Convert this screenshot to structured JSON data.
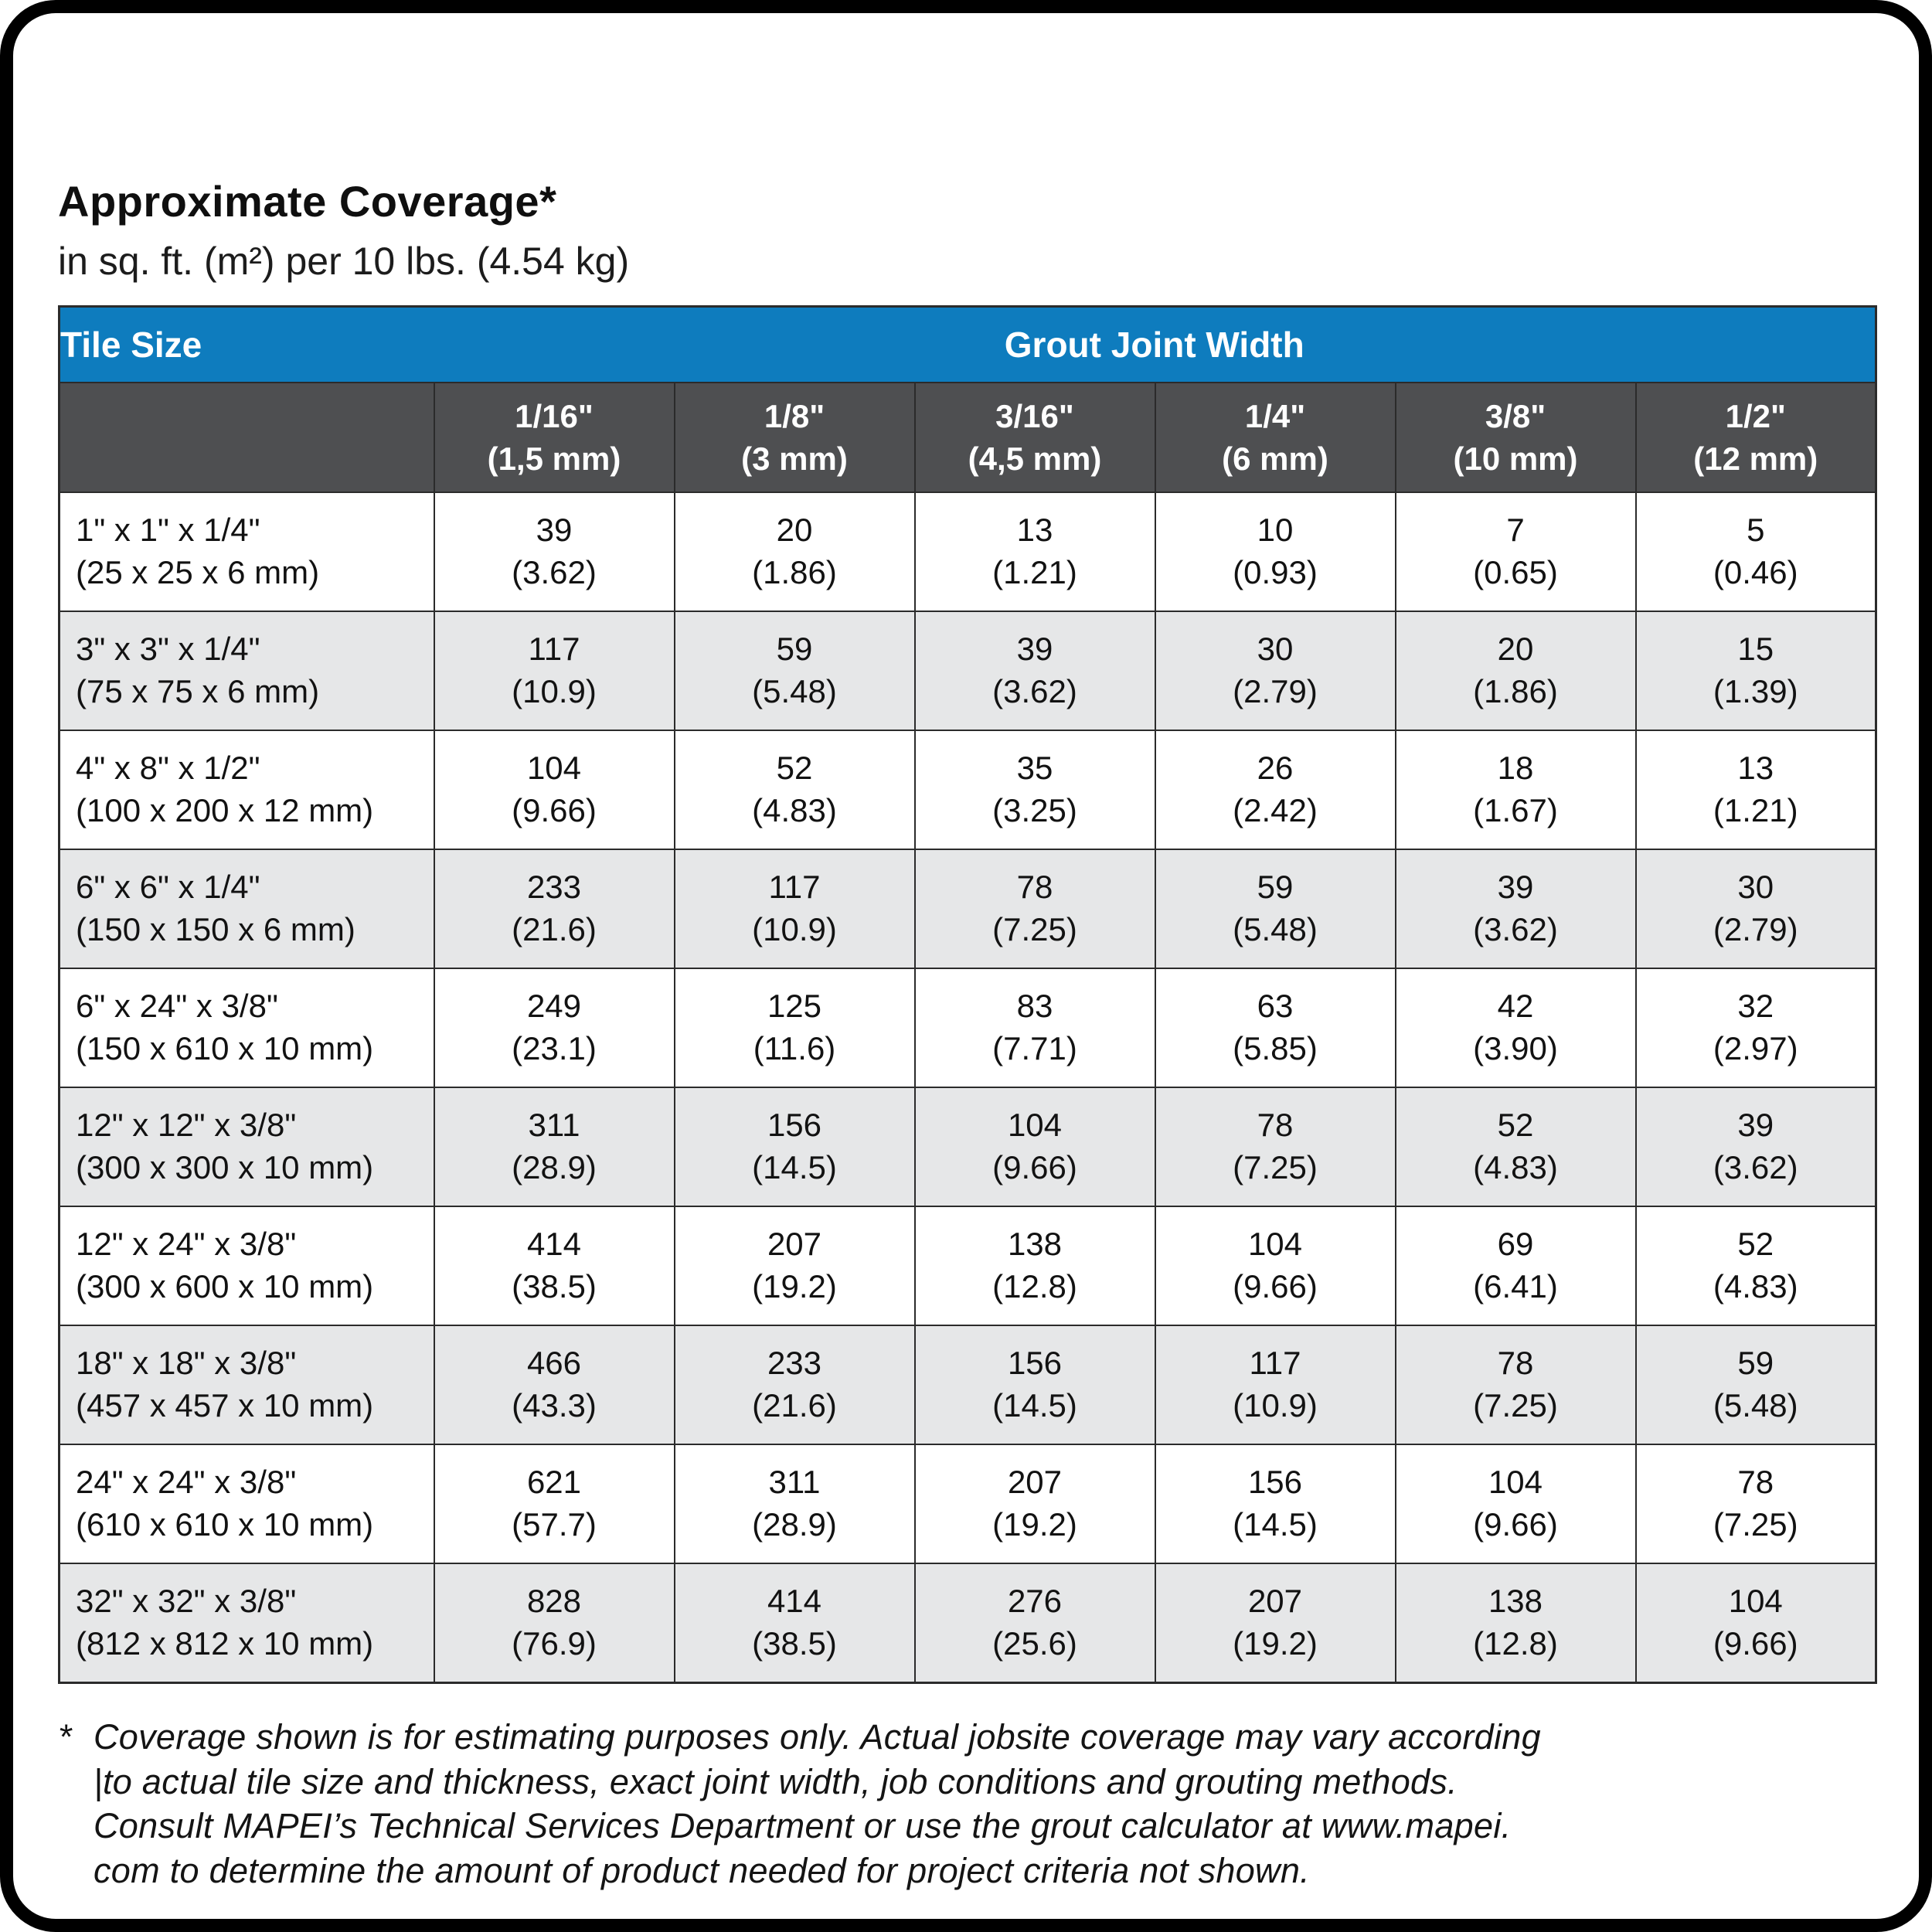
{
  "page": {
    "title": "Approximate Coverage*",
    "subtitle": "in sq. ft. (m²) per 10 lbs. (4.54 kg)"
  },
  "table": {
    "corner_header": "Tile Size",
    "group_header": "Grout Joint Width",
    "columns": [
      {
        "width_in": "1/16\"",
        "width_mm": "(1,5 mm)"
      },
      {
        "width_in": "1/8\"",
        "width_mm": "(3 mm)"
      },
      {
        "width_in": "3/16\"",
        "width_mm": "(4,5 mm)"
      },
      {
        "width_in": "1/4\"",
        "width_mm": "(6 mm)"
      },
      {
        "width_in": "3/8\"",
        "width_mm": "(10 mm)"
      },
      {
        "width_in": "1/2\"",
        "width_mm": "(12 mm)"
      }
    ],
    "rows": [
      {
        "size_in": "1\" x 1\" x 1/4\"",
        "size_mm": "(25 x 25 x 6 mm)",
        "values": [
          {
            "sqft": "39",
            "m2": "(3.62)"
          },
          {
            "sqft": "20",
            "m2": "(1.86)"
          },
          {
            "sqft": "13",
            "m2": "(1.21)"
          },
          {
            "sqft": "10",
            "m2": "(0.93)"
          },
          {
            "sqft": "7",
            "m2": "(0.65)"
          },
          {
            "sqft": "5",
            "m2": "(0.46)"
          }
        ]
      },
      {
        "size_in": "3\" x 3\" x 1/4\"",
        "size_mm": "(75 x 75 x 6 mm)",
        "values": [
          {
            "sqft": "117",
            "m2": "(10.9)"
          },
          {
            "sqft": "59",
            "m2": "(5.48)"
          },
          {
            "sqft": "39",
            "m2": "(3.62)"
          },
          {
            "sqft": "30",
            "m2": "(2.79)"
          },
          {
            "sqft": "20",
            "m2": "(1.86)"
          },
          {
            "sqft": "15",
            "m2": "(1.39)"
          }
        ]
      },
      {
        "size_in": "4\" x 8\" x 1/2\"",
        "size_mm": "(100 x 200 x 12 mm)",
        "values": [
          {
            "sqft": "104",
            "m2": "(9.66)"
          },
          {
            "sqft": "52",
            "m2": "(4.83)"
          },
          {
            "sqft": "35",
            "m2": "(3.25)"
          },
          {
            "sqft": "26",
            "m2": "(2.42)"
          },
          {
            "sqft": "18",
            "m2": "(1.67)"
          },
          {
            "sqft": "13",
            "m2": "(1.21)"
          }
        ]
      },
      {
        "size_in": "6\" x 6\" x 1/4\"",
        "size_mm": "(150 x 150 x 6 mm)",
        "values": [
          {
            "sqft": "233",
            "m2": "(21.6)"
          },
          {
            "sqft": "117",
            "m2": "(10.9)"
          },
          {
            "sqft": "78",
            "m2": "(7.25)"
          },
          {
            "sqft": "59",
            "m2": "(5.48)"
          },
          {
            "sqft": "39",
            "m2": "(3.62)"
          },
          {
            "sqft": "30",
            "m2": "(2.79)"
          }
        ]
      },
      {
        "size_in": "6\" x 24\" x 3/8\"",
        "size_mm": "(150 x 610 x 10 mm)",
        "values": [
          {
            "sqft": "249",
            "m2": "(23.1)"
          },
          {
            "sqft": "125",
            "m2": "(11.6)"
          },
          {
            "sqft": "83",
            "m2": "(7.71)"
          },
          {
            "sqft": "63",
            "m2": "(5.85)"
          },
          {
            "sqft": "42",
            "m2": "(3.90)"
          },
          {
            "sqft": "32",
            "m2": "(2.97)"
          }
        ]
      },
      {
        "size_in": "12\" x 12\" x 3/8\"",
        "size_mm": "(300 x 300 x 10 mm)",
        "values": [
          {
            "sqft": "311",
            "m2": "(28.9)"
          },
          {
            "sqft": "156",
            "m2": "(14.5)"
          },
          {
            "sqft": "104",
            "m2": "(9.66)"
          },
          {
            "sqft": "78",
            "m2": "(7.25)"
          },
          {
            "sqft": "52",
            "m2": "(4.83)"
          },
          {
            "sqft": "39",
            "m2": "(3.62)"
          }
        ]
      },
      {
        "size_in": "12\" x 24\" x 3/8\"",
        "size_mm": "(300 x 600 x 10 mm)",
        "values": [
          {
            "sqft": "414",
            "m2": "(38.5)"
          },
          {
            "sqft": "207",
            "m2": "(19.2)"
          },
          {
            "sqft": "138",
            "m2": "(12.8)"
          },
          {
            "sqft": "104",
            "m2": "(9.66)"
          },
          {
            "sqft": "69",
            "m2": "(6.41)"
          },
          {
            "sqft": "52",
            "m2": "(4.83)"
          }
        ]
      },
      {
        "size_in": "18\" x 18\" x 3/8\"",
        "size_mm": "(457 x 457 x 10 mm)",
        "values": [
          {
            "sqft": "466",
            "m2": "(43.3)"
          },
          {
            "sqft": "233",
            "m2": "(21.6)"
          },
          {
            "sqft": "156",
            "m2": "(14.5)"
          },
          {
            "sqft": "117",
            "m2": "(10.9)"
          },
          {
            "sqft": "78",
            "m2": "(7.25)"
          },
          {
            "sqft": "59",
            "m2": "(5.48)"
          }
        ]
      },
      {
        "size_in": "24\" x 24\" x 3/8\"",
        "size_mm": "(610 x 610 x 10 mm)",
        "values": [
          {
            "sqft": "621",
            "m2": "(57.7)"
          },
          {
            "sqft": "311",
            "m2": "(28.9)"
          },
          {
            "sqft": "207",
            "m2": "(19.2)"
          },
          {
            "sqft": "156",
            "m2": "(14.5)"
          },
          {
            "sqft": "104",
            "m2": "(9.66)"
          },
          {
            "sqft": "78",
            "m2": "(7.25)"
          }
        ]
      },
      {
        "size_in": "32\" x 32\" x 3/8\"",
        "size_mm": "(812 x 812 x 10 mm)",
        "values": [
          {
            "sqft": "828",
            "m2": "(76.9)"
          },
          {
            "sqft": "414",
            "m2": "(38.5)"
          },
          {
            "sqft": "276",
            "m2": "(25.6)"
          },
          {
            "sqft": "207",
            "m2": "(19.2)"
          },
          {
            "sqft": "138",
            "m2": "(12.8)"
          },
          {
            "sqft": "104",
            "m2": "(9.66)"
          }
        ]
      }
    ]
  },
  "footnote": {
    "marker": "*",
    "lines": [
      "Coverage shown is for estimating purposes only. Actual jobsite coverage may vary according",
      "|to actual tile size and thickness, exact joint width, job conditions and grouting methods.",
      "Consult MAPEI’s Technical Services Department or use the grout calculator at www.mapei.",
      "com to determine the amount of product needed for project criteria not shown."
    ]
  },
  "colors": {
    "header_blue": "#0e7cbe",
    "subheader_gray": "#4e4f51",
    "row_alt_gray": "#e6e7e8",
    "border_black": "#2b2b2b"
  }
}
